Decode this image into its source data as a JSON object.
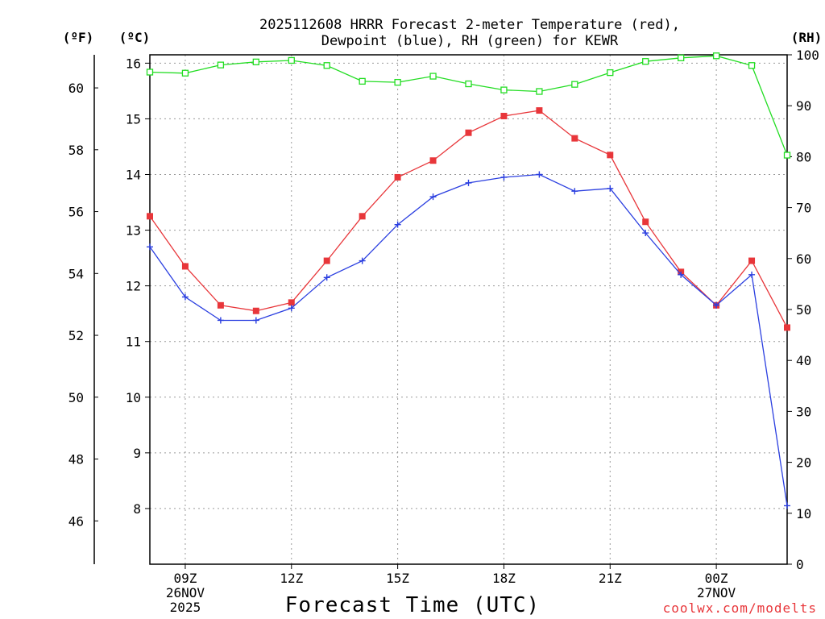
{
  "chart_data": {
    "type": "line",
    "title": [
      "2025112608 HRRR Forecast 2-meter Temperature (red),",
      "Dewpoint (blue), RH (green) for KEWR"
    ],
    "xlabel": "Forecast Time (UTC)",
    "unit_labels": {
      "fahrenheit": "(ºF)",
      "celsius": "(ºC)",
      "rh": "(RH)"
    },
    "x_hours": [
      8,
      9,
      10,
      11,
      12,
      13,
      14,
      15,
      16,
      17,
      18,
      19,
      20,
      21,
      22,
      23,
      24,
      25,
      26
    ],
    "x_ticks": [
      {
        "hour": 9,
        "lines": [
          "09Z",
          "26NOV",
          "2025"
        ]
      },
      {
        "hour": 12,
        "lines": [
          "12Z"
        ]
      },
      {
        "hour": 15,
        "lines": [
          "15Z"
        ]
      },
      {
        "hour": 18,
        "lines": [
          "18Z"
        ]
      },
      {
        "hour": 21,
        "lines": [
          "21Z"
        ]
      },
      {
        "hour": 24,
        "lines": [
          "00Z",
          "27NOV"
        ]
      }
    ],
    "y_celsius": {
      "range": [
        7.0,
        16.15
      ],
      "ticks": [
        8,
        9,
        10,
        11,
        12,
        13,
        14,
        15,
        16
      ]
    },
    "y_fahrenheit": {
      "ticks": [
        46,
        48,
        50,
        52,
        54,
        56,
        58,
        60
      ]
    },
    "y_rh": {
      "range": [
        0,
        100
      ],
      "ticks": [
        0,
        10,
        20,
        30,
        40,
        50,
        60,
        70,
        80,
        90,
        100
      ]
    },
    "series": [
      {
        "name": "Temperature",
        "axis": "celsius",
        "color": "#e8363a",
        "marker": "filled-square",
        "values": [
          13.25,
          12.35,
          11.65,
          11.55,
          11.7,
          12.45,
          13.25,
          13.95,
          14.25,
          14.75,
          15.05,
          15.15,
          14.65,
          14.35,
          13.15,
          12.25,
          11.65,
          12.45,
          11.25
        ]
      },
      {
        "name": "Dewpoint",
        "axis": "celsius",
        "color": "#2b3fe0",
        "marker": "plus",
        "values": [
          12.7,
          11.8,
          11.38,
          11.38,
          11.6,
          12.15,
          12.45,
          13.1,
          13.6,
          13.85,
          13.95,
          14.0,
          13.7,
          13.75,
          12.95,
          12.2,
          11.65,
          12.2,
          8.05
        ]
      },
      {
        "name": "RH",
        "axis": "rh",
        "color": "#22dd22",
        "marker": "open-square",
        "values": [
          96.6,
          96.4,
          98.0,
          98.6,
          98.9,
          97.9,
          94.8,
          94.6,
          95.8,
          94.3,
          93.1,
          92.8,
          94.2,
          96.5,
          98.7,
          99.4,
          99.8,
          97.9,
          80.3
        ]
      }
    ],
    "legend": "in title",
    "grid": true
  },
  "credit": "coolwx.com/modelts"
}
